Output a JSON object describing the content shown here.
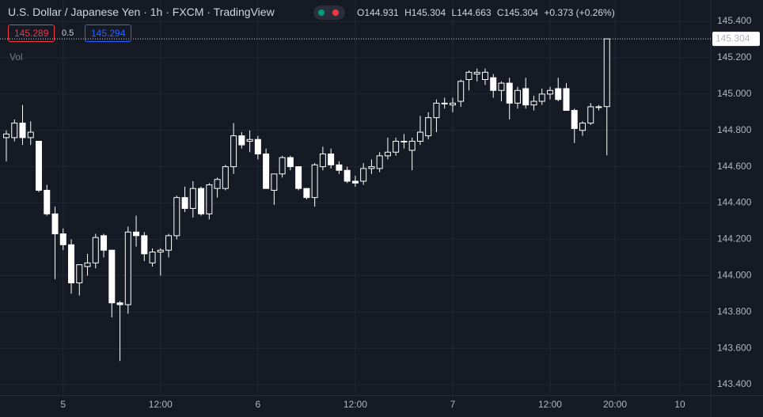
{
  "header": {
    "title": "U.S. Dollar / Japanese Yen · 1h · FXCM · TradingView",
    "open_key": "O",
    "open": "144.931",
    "high_key": "H",
    "high": "145.304",
    "low_key": "L",
    "low": "144.663",
    "close_key": "C",
    "close": "145.304",
    "change": "+0.373 (+0.26%)",
    "sell": "145.289",
    "spread": "0.5",
    "buy": "145.294",
    "volume_label": "Vol"
  },
  "chart_data": {
    "type": "candlestick",
    "x": [
      0,
      1,
      2,
      3,
      4,
      5,
      6,
      7,
      8,
      9,
      10,
      11,
      12,
      13,
      14,
      15,
      16,
      17,
      18,
      19,
      20,
      21,
      22,
      23,
      24,
      25,
      26,
      27,
      28,
      29,
      30,
      31,
      32,
      33,
      34,
      35,
      36,
      37,
      38,
      39,
      40,
      41,
      42,
      43,
      44,
      45,
      46,
      47,
      48,
      49,
      50,
      51,
      52,
      53,
      54,
      55,
      56,
      57,
      58,
      59,
      60,
      61,
      62,
      63,
      64,
      65,
      66,
      67,
      68,
      69,
      70,
      71,
      72,
      73,
      74
    ],
    "open": [
      144.76,
      144.76,
      144.84,
      144.76,
      144.74,
      144.47,
      144.34,
      144.23,
      144.17,
      143.96,
      144.05,
      144.07,
      144.22,
      144.14,
      143.85,
      143.84,
      144.24,
      144.22,
      144.07,
      144.13,
      144.14,
      144.22,
      144.43,
      144.37,
      144.48,
      144.34,
      144.48,
      144.48,
      144.6,
      144.77,
      144.74,
      144.75,
      144.67,
      144.47,
      144.56,
      144.65,
      144.6,
      144.48,
      144.43,
      144.6,
      144.67,
      144.61,
      144.58,
      144.52,
      144.52,
      144.59,
      144.59,
      144.66,
      144.68,
      144.74,
      144.69,
      144.74,
      144.77,
      144.87,
      144.95,
      144.94,
      144.96,
      145.08,
      145.11,
      145.08,
      145.09,
      145.02,
      145.06,
      144.95,
      145.03,
      144.94,
      144.96,
      145.0,
      145.03,
      145.03,
      144.91,
      144.8,
      144.84,
      144.93,
      144.931
    ],
    "high": [
      144.8,
      144.86,
      144.94,
      144.85,
      144.74,
      144.5,
      144.38,
      144.26,
      144.2,
      144.06,
      144.12,
      144.23,
      144.23,
      144.14,
      143.86,
      144.27,
      144.33,
      144.24,
      144.15,
      144.15,
      144.23,
      144.44,
      144.49,
      144.52,
      144.49,
      144.51,
      144.54,
      144.61,
      144.84,
      144.79,
      144.8,
      144.77,
      144.7,
      144.56,
      144.66,
      144.66,
      144.6,
      144.48,
      144.62,
      144.71,
      144.7,
      144.63,
      144.6,
      144.55,
      144.62,
      144.64,
      144.68,
      144.76,
      144.76,
      144.78,
      144.76,
      144.88,
      144.9,
      144.97,
      144.98,
      144.98,
      145.08,
      145.13,
      145.14,
      145.14,
      145.11,
      145.07,
      145.09,
      145.04,
      145.09,
      144.99,
      145.03,
      145.04,
      145.09,
      145.06,
      144.92,
      144.85,
      144.95,
      144.94,
      145.304
    ],
    "low": [
      144.63,
      144.74,
      144.72,
      144.72,
      144.46,
      144.33,
      143.98,
      144.14,
      143.9,
      143.89,
      144.0,
      144.04,
      144.1,
      143.77,
      143.53,
      143.79,
      144.16,
      144.08,
      144.05,
      144.0,
      144.1,
      144.2,
      144.35,
      144.32,
      144.33,
      144.31,
      144.43,
      144.47,
      144.56,
      144.7,
      144.68,
      144.64,
      144.48,
      144.39,
      144.54,
      144.58,
      144.47,
      144.42,
      144.38,
      144.58,
      144.59,
      144.56,
      144.51,
      144.49,
      144.5,
      144.56,
      144.57,
      144.64,
      144.66,
      144.7,
      144.58,
      144.72,
      144.75,
      144.79,
      144.92,
      144.9,
      144.93,
      145.02,
      145.07,
      145.05,
      144.98,
      144.96,
      144.86,
      144.92,
      144.92,
      144.91,
      144.94,
      144.97,
      144.96,
      144.91,
      144.73,
      144.77,
      144.83,
      144.91,
      144.663
    ],
    "close": [
      144.78,
      144.84,
      144.76,
      144.79,
      144.47,
      144.34,
      144.23,
      144.17,
      143.96,
      144.06,
      144.07,
      144.21,
      144.14,
      143.85,
      143.84,
      144.24,
      144.22,
      144.12,
      144.13,
      144.14,
      144.22,
      144.43,
      144.37,
      144.48,
      144.34,
      144.5,
      144.53,
      144.6,
      144.77,
      144.72,
      144.75,
      144.67,
      144.48,
      144.56,
      144.65,
      144.6,
      144.48,
      144.43,
      144.61,
      144.67,
      144.61,
      144.58,
      144.52,
      144.51,
      144.59,
      144.6,
      144.66,
      144.68,
      144.74,
      144.74,
      144.74,
      144.79,
      144.87,
      144.95,
      144.95,
      144.95,
      145.07,
      145.12,
      145.12,
      145.12,
      145.02,
      145.06,
      144.95,
      145.02,
      144.94,
      144.96,
      145.0,
      145.02,
      144.97,
      144.91,
      144.81,
      144.84,
      144.93,
      144.93,
      145.304
    ],
    "color": "#ffffff",
    "xlim": [
      -0.78,
      86.8
    ],
    "xticks": [
      {
        "value": 7,
        "label": "5"
      },
      {
        "value": 19,
        "label": "12:00"
      },
      {
        "value": 31,
        "label": "6"
      },
      {
        "value": 43,
        "label": "12:00"
      },
      {
        "value": 55,
        "label": "7"
      },
      {
        "value": 67,
        "label": "12:00"
      },
      {
        "value": 75,
        "label": "20:00"
      },
      {
        "value": 83,
        "label": "10"
      }
    ],
    "ylim": [
      143.339,
      145.518
    ],
    "yticks": [
      {
        "value": 143.4,
        "label": "143.400"
      },
      {
        "value": 143.6,
        "label": "143.600"
      },
      {
        "value": 143.8,
        "label": "143.800"
      },
      {
        "value": 144.0,
        "label": "144.000"
      },
      {
        "value": 144.2,
        "label": "144.200"
      },
      {
        "value": 144.4,
        "label": "144.400"
      },
      {
        "value": 144.6,
        "label": "144.600"
      },
      {
        "value": 144.8,
        "label": "144.800"
      },
      {
        "value": 145.0,
        "label": "145.000"
      },
      {
        "value": 145.2,
        "label": "145.200"
      },
      {
        "value": 145.4,
        "label": "145.400"
      }
    ],
    "last_price": {
      "value": 145.304,
      "label": "145.304"
    },
    "grid": true
  }
}
